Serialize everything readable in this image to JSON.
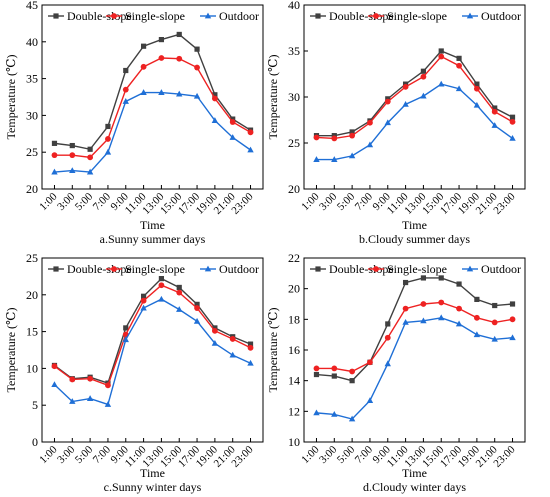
{
  "colors": {
    "double": "#404040",
    "single": "#ee2222",
    "outdoor": "#1f6fd6"
  },
  "chart_data": [
    {
      "type": "line",
      "title": "a.Sunny summer days",
      "xlabel": "Time",
      "ylabel": "Temperature (℃)",
      "ylim": [
        20,
        45
      ],
      "yticks": [
        "20",
        "25",
        "30",
        "35",
        "40",
        "45"
      ],
      "categories": [
        "1:00",
        "3:00",
        "5:00",
        "7:00",
        "9:00",
        "11:00",
        "13:00",
        "15:00",
        "17:00",
        "19:00",
        "21:00",
        "23:00"
      ],
      "legend_position": "top",
      "series": [
        {
          "name": "Double-slope",
          "values": [
            26.2,
            25.9,
            25.4,
            28.5,
            36.1,
            39.4,
            40.3,
            41.0,
            39.0,
            32.8,
            29.5,
            28.0
          ]
        },
        {
          "name": "Single-slope",
          "values": [
            24.6,
            24.6,
            24.3,
            26.8,
            33.5,
            36.6,
            37.8,
            37.7,
            36.5,
            32.3,
            29.1,
            27.7
          ]
        },
        {
          "name": "Outdoor",
          "values": [
            22.3,
            22.5,
            22.3,
            25.0,
            31.9,
            33.1,
            33.1,
            32.9,
            32.6,
            29.3,
            27.0,
            25.3
          ]
        }
      ]
    },
    {
      "type": "line",
      "title": "b.Cloudy summer days",
      "xlabel": "Time",
      "ylabel": "Temperature (℃)",
      "ylim": [
        20,
        40
      ],
      "yticks": [
        "20",
        "25",
        "30",
        "35",
        "40"
      ],
      "categories": [
        "1:00",
        "3:00",
        "5:00",
        "7:00",
        "9:00",
        "11:00",
        "13:00",
        "15:00",
        "17:00",
        "19:00",
        "21:00",
        "23:00"
      ],
      "legend_position": "top",
      "series": [
        {
          "name": "Double-slope",
          "values": [
            25.8,
            25.8,
            26.2,
            27.4,
            29.8,
            31.4,
            32.8,
            35.0,
            34.2,
            31.4,
            28.8,
            27.8
          ]
        },
        {
          "name": "Single-slope",
          "values": [
            25.6,
            25.5,
            25.8,
            27.2,
            29.5,
            31.1,
            32.2,
            34.4,
            33.4,
            30.9,
            28.4,
            27.3
          ]
        },
        {
          "name": "Outdoor",
          "values": [
            23.2,
            23.2,
            23.6,
            24.8,
            27.2,
            29.2,
            30.1,
            31.4,
            30.9,
            29.1,
            26.9,
            25.5
          ]
        }
      ]
    },
    {
      "type": "line",
      "title": "c.Sunny winter days",
      "xlabel": "Time",
      "ylabel": "Temperature (℃)",
      "ylim": [
        0,
        25
      ],
      "yticks": [
        "0",
        "5",
        "10",
        "15",
        "20",
        "25"
      ],
      "categories": [
        "1:00",
        "3:00",
        "5:00",
        "7:00",
        "9:00",
        "11:00",
        "13:00",
        "15:00",
        "17:00",
        "19:00",
        "21:00",
        "23:00"
      ],
      "legend_position": "top",
      "series": [
        {
          "name": "Double-slope",
          "values": [
            10.4,
            8.6,
            8.8,
            8.0,
            15.5,
            19.8,
            22.2,
            21.0,
            18.7,
            15.5,
            14.3,
            13.3
          ]
        },
        {
          "name": "Single-slope",
          "values": [
            10.3,
            8.5,
            8.6,
            7.7,
            14.6,
            19.2,
            21.3,
            20.3,
            18.2,
            15.1,
            14.0,
            12.8
          ]
        },
        {
          "name": "Outdoor",
          "values": [
            7.8,
            5.5,
            5.9,
            5.1,
            13.9,
            18.2,
            19.4,
            18.0,
            16.4,
            13.4,
            11.8,
            10.7
          ]
        }
      ]
    },
    {
      "type": "line",
      "title": "d.Cloudy winter days",
      "xlabel": "Time",
      "ylabel": "Temperature (℃)",
      "ylim": [
        10,
        22
      ],
      "yticks": [
        "10",
        "12",
        "14",
        "16",
        "18",
        "20",
        "22"
      ],
      "categories": [
        "1:00",
        "3:00",
        "5:00",
        "7:00",
        "9:00",
        "11:00",
        "13:00",
        "15:00",
        "17:00",
        "19:00",
        "21:00",
        "23:00"
      ],
      "legend_position": "top",
      "series": [
        {
          "name": "Double-slope",
          "values": [
            14.4,
            14.3,
            14.0,
            15.2,
            17.7,
            20.4,
            20.7,
            20.7,
            20.3,
            19.3,
            18.9,
            19.0
          ]
        },
        {
          "name": "Single-slope",
          "values": [
            14.8,
            14.8,
            14.6,
            15.2,
            16.8,
            18.7,
            19.0,
            19.1,
            18.7,
            18.1,
            17.8,
            18.0
          ]
        },
        {
          "name": "Outdoor",
          "values": [
            11.9,
            11.8,
            11.5,
            12.7,
            15.1,
            17.8,
            17.9,
            18.1,
            17.7,
            17.0,
            16.7,
            16.8
          ]
        }
      ]
    }
  ]
}
